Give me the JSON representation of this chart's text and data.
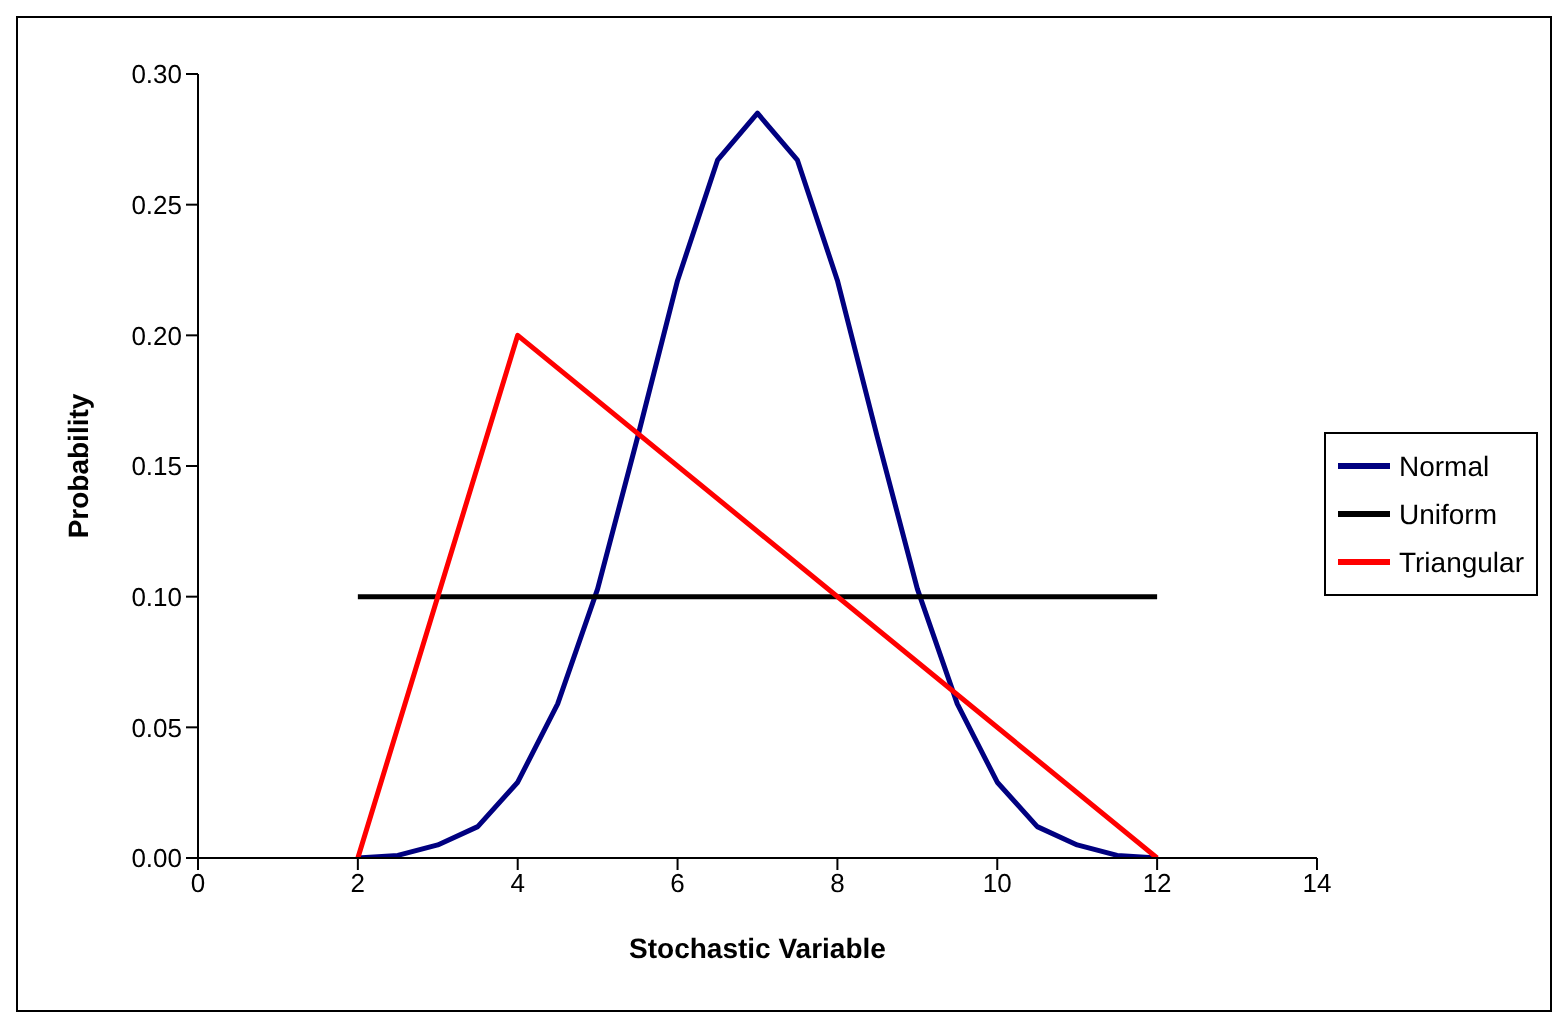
{
  "chart_data": {
    "type": "line",
    "xlabel": "Stochastic Variable",
    "ylabel": "Probability",
    "xlim": [
      0,
      14
    ],
    "xticks": [
      0,
      2,
      4,
      6,
      8,
      10,
      12,
      14
    ],
    "ylim": [
      0,
      0.3
    ],
    "yticks": [
      {
        "value": 0,
        "label": "0.00"
      },
      {
        "value": 0.05,
        "label": "0.05"
      },
      {
        "value": 0.1,
        "label": "0.10"
      },
      {
        "value": 0.15,
        "label": "0.15"
      },
      {
        "value": 0.2,
        "label": "0.20"
      },
      {
        "value": 0.25,
        "label": "0.25"
      },
      {
        "value": 0.3,
        "label": "0.30"
      }
    ],
    "grid": false,
    "legend": "right",
    "marker": "none",
    "line_style": "solid",
    "series": [
      {
        "name": "Normal",
        "color": "#000080",
        "x": [
          2,
          2.5,
          3,
          3.5,
          4,
          4.5,
          5,
          5.5,
          6,
          6.5,
          7,
          7.5,
          8,
          8.5,
          9,
          9.5,
          10,
          10.5,
          11,
          11.5,
          12
        ],
        "values": [
          0,
          0.001,
          0.005,
          0.012,
          0.029,
          0.059,
          0.103,
          0.161,
          0.221,
          0.267,
          0.285,
          0.267,
          0.221,
          0.161,
          0.103,
          0.059,
          0.029,
          0.012,
          0.005,
          0.001,
          0
        ]
      },
      {
        "name": "Uniform",
        "color": "#000000",
        "x": [
          2,
          12
        ],
        "values": [
          0.1,
          0.1
        ]
      },
      {
        "name": "Triangular",
        "color": "#ff0000",
        "x": [
          2,
          4,
          12
        ],
        "values": [
          0,
          0.2,
          0
        ]
      }
    ]
  }
}
